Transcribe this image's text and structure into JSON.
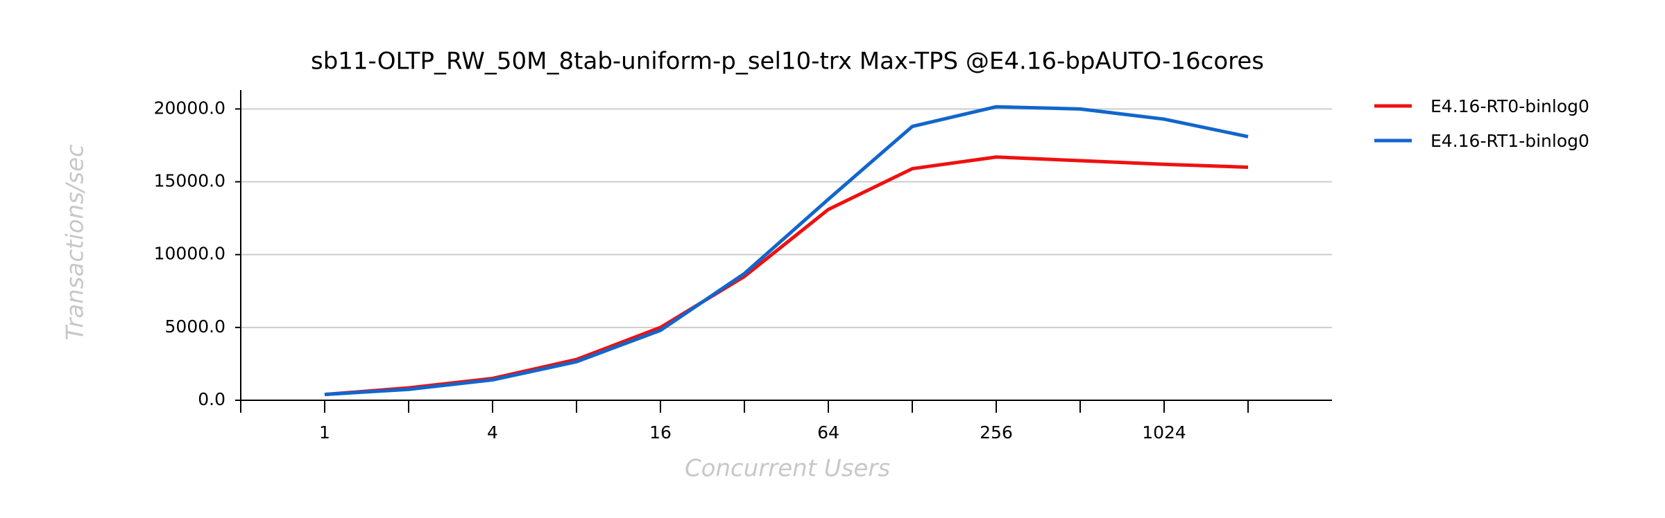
{
  "chart_data": {
    "type": "line",
    "title": "sb11-OLTP_RW_50M_8tab-uniform-p_sel10-trx Max-TPS @E4.16-bpAUTO-16cores",
    "xlabel": "Concurrent Users",
    "ylabel": "Transactions/sec",
    "categories": [
      "1",
      null,
      "4",
      null,
      "16",
      null,
      "64",
      null,
      "256",
      null,
      "1024",
      null
    ],
    "series": [
      {
        "name": "E4.16-RT0-binlog0",
        "color": "#ee1111",
        "values": [
          400,
          850,
          1500,
          2800,
          5000,
          8500,
          13100,
          15900,
          16700,
          16450,
          16200,
          16000
        ]
      },
      {
        "name": "E4.16-RT1-binlog0",
        "color": "#1166cc",
        "values": [
          400,
          750,
          1400,
          2650,
          4800,
          8700,
          13800,
          18800,
          20150,
          20000,
          19300,
          18100
        ]
      }
    ],
    "ylim": [
      0,
      21300
    ],
    "yticks": [
      {
        "value": 0,
        "label": "0.0"
      },
      {
        "value": 5000,
        "label": "5000.0"
      },
      {
        "value": 10000,
        "label": "10000.0"
      },
      {
        "value": 15000,
        "label": "15000.0"
      },
      {
        "value": 20000,
        "label": "20000.0"
      }
    ],
    "grid": true,
    "legend": "right"
  }
}
